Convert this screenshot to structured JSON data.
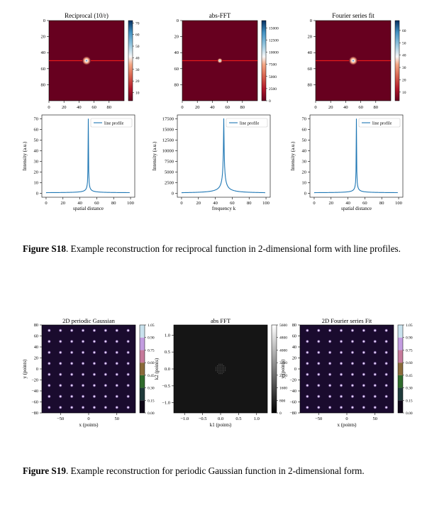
{
  "figure_s18": {
    "panels": [
      {
        "title": "Reciprocal (10/r)",
        "x_ticks": [
          "0",
          "20",
          "40",
          "60",
          "80"
        ],
        "y_ticks": [
          "0",
          "20",
          "40",
          "60",
          "80"
        ],
        "colorbar_ticks": [
          "10",
          "20",
          "30",
          "40",
          "50",
          "60",
          "70"
        ],
        "colormap": "RdBu"
      },
      {
        "title": "abs-FFT",
        "x_ticks": [
          "0",
          "20",
          "40",
          "60",
          "80"
        ],
        "y_ticks": [
          "0",
          "20",
          "40",
          "60",
          "80"
        ],
        "colorbar_ticks": [
          "0",
          "2500",
          "5000",
          "7500",
          "10000",
          "12500",
          "15000"
        ],
        "colormap": "RdBu"
      },
      {
        "title": "Fourier series fit",
        "x_ticks": [
          "0",
          "20",
          "40",
          "60",
          "80"
        ],
        "y_ticks": [
          "0",
          "20",
          "40",
          "60",
          "80"
        ],
        "colorbar_ticks": [
          "10",
          "20",
          "30",
          "40",
          "50",
          "60"
        ],
        "colormap": "RdBu"
      }
    ],
    "profiles": [
      {
        "xlabel": "spatial distance",
        "ylabel": "Intensity (a.u.)",
        "legend": "line profile",
        "x_ticks": [
          "0",
          "20",
          "40",
          "60",
          "80",
          "100"
        ],
        "y_ticks": [
          "0",
          "10",
          "20",
          "30",
          "40",
          "50",
          "60",
          "70"
        ]
      },
      {
        "xlabel": "frequency k",
        "ylabel": "Intensity (a.u.)",
        "legend": "line profile",
        "x_ticks": [
          "0",
          "20",
          "40",
          "60",
          "80",
          "100"
        ],
        "y_ticks": [
          "0",
          "2500",
          "5000",
          "7500",
          "10000",
          "12500",
          "15000",
          "17500"
        ]
      },
      {
        "xlabel": "spatial distance",
        "ylabel": "Intensity (a.u.)",
        "legend": "line profile",
        "x_ticks": [
          "0",
          "20",
          "40",
          "60",
          "80",
          "100"
        ],
        "y_ticks": [
          "0",
          "10",
          "20",
          "30",
          "40",
          "50",
          "60",
          "70"
        ]
      }
    ],
    "caption_label": "Figure S18",
    "caption_text": ". Example reconstruction for reciprocal function in 2-dimensional form with line profiles."
  },
  "figure_s19": {
    "panels": [
      {
        "title": "2D periodic Gaussian",
        "xlabel": "x (points)",
        "ylabel": "y (points)",
        "x_ticks": [
          "−50",
          "0",
          "50"
        ],
        "y_ticks": [
          "80",
          "60",
          "40",
          "20",
          "0",
          "−20",
          "−40",
          "−60",
          "−80"
        ],
        "colorbar_ticks": [
          "0.00",
          "0.15",
          "0.30",
          "0.45",
          "0.60",
          "0.75",
          "0.90",
          "1.05"
        ],
        "colormap": "cubehelix"
      },
      {
        "title": "abs FFT",
        "xlabel": "k1 (points)",
        "ylabel": "k2 (points)",
        "x_ticks": [
          "−1.0",
          "−0.5",
          "0.0",
          "0.5",
          "1.0"
        ],
        "y_ticks": [
          "1.0",
          "0.5",
          "0.0",
          "−0.5",
          "−1.0"
        ],
        "colorbar_ticks": [
          "0",
          "800",
          "1600",
          "2400",
          "3200",
          "4000",
          "4800",
          "5600"
        ],
        "colormap": "gray"
      },
      {
        "title": "2D Fourier series Fit",
        "xlabel": "x (points)",
        "ylabel": "y (points)",
        "x_ticks": [
          "−50",
          "0",
          "50"
        ],
        "y_ticks": [
          "80",
          "60",
          "40",
          "20",
          "0",
          "−20",
          "−40",
          "−60",
          "−80"
        ],
        "colorbar_ticks": [
          "0.00",
          "0.15",
          "0.30",
          "0.45",
          "0.60",
          "0.75",
          "0.90",
          "1.05"
        ],
        "colormap": "cubehelix"
      }
    ],
    "caption_label": "Figure S19",
    "caption_text": ". Example reconstruction for periodic Gaussian function in 2-dimensional form."
  },
  "colors": {
    "map_red": "#67001f",
    "line_red": "#e41a1c",
    "profile_line": "#1f77b4",
    "gaussian_bg": "#1a0b2e"
  }
}
